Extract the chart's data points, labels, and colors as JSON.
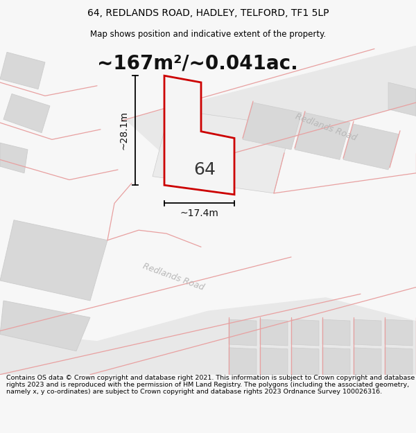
{
  "title_line1": "64, REDLANDS ROAD, HADLEY, TELFORD, TF1 5LP",
  "title_line2": "Map shows position and indicative extent of the property.",
  "area_text": "~167m²/~0.041ac.",
  "dim_height": "~28.1m",
  "dim_width": "~17.4m",
  "label_number": "64",
  "road_label_upper": "Redlands Road",
  "road_label_lower": "Redlands Road",
  "footer_text": "Contains OS data © Crown copyright and database right 2021. This information is subject to Crown copyright and database rights 2023 and is reproduced with the permission of HM Land Registry. The polygons (including the associated geometry, namely x, y co-ordinates) are subject to Crown copyright and database rights 2023 Ordnance Survey 100026316.",
  "bg_color": "#f7f7f7",
  "road_band_color": "#e8e8e8",
  "building_color": "#d8d8d8",
  "building_edge": "#cccccc",
  "road_line_color": "#e8a0a0",
  "property_color": "#cc0000",
  "property_lw": 2.0,
  "road_label_color": "#b8b8b8",
  "title_fontsize": 10,
  "subtitle_fontsize": 8.5,
  "area_fontsize": 20,
  "dim_fontsize": 10,
  "number_fontsize": 18,
  "footer_fontsize": 6.8,
  "road_lw": 0.9
}
